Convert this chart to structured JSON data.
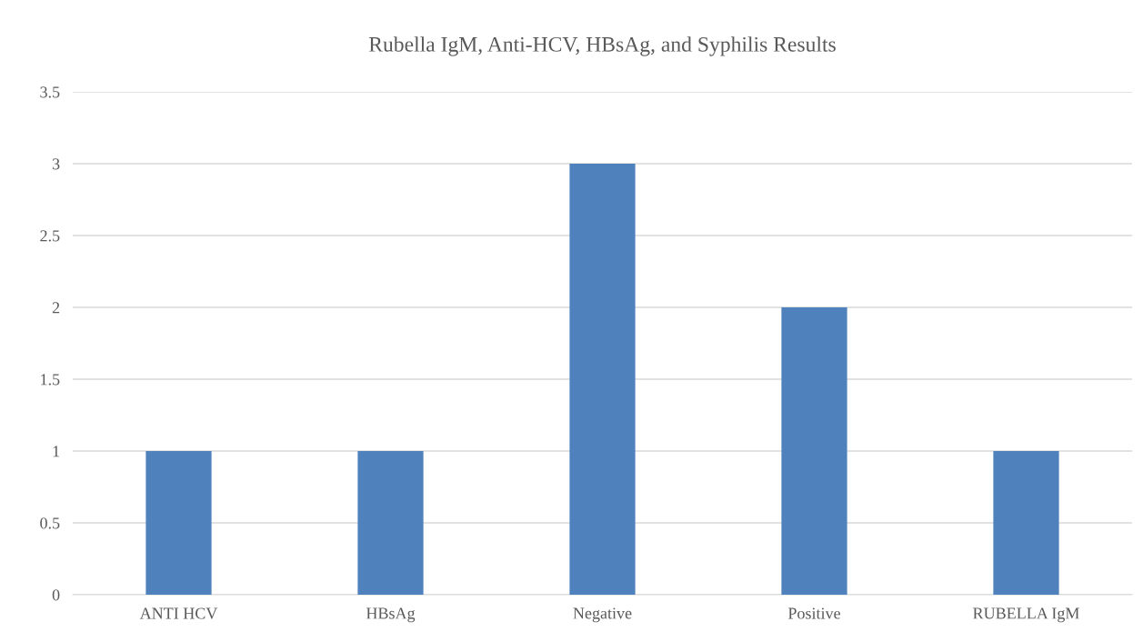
{
  "chart_data": {
    "type": "bar",
    "title": "Rubella IgM, Anti-HCV, HBsAg, and Syphilis Results",
    "categories": [
      "ANTI HCV",
      "HBsAg",
      "Negative",
      "Positive",
      "RUBELLA IgM"
    ],
    "values": [
      1,
      1,
      3,
      2,
      1
    ],
    "color": "#4f81bd",
    "ylim": [
      0,
      3.5
    ],
    "yticks": [
      0,
      0.5,
      1,
      1.5,
      2,
      2.5,
      3,
      3.5
    ],
    "grid": "y"
  }
}
